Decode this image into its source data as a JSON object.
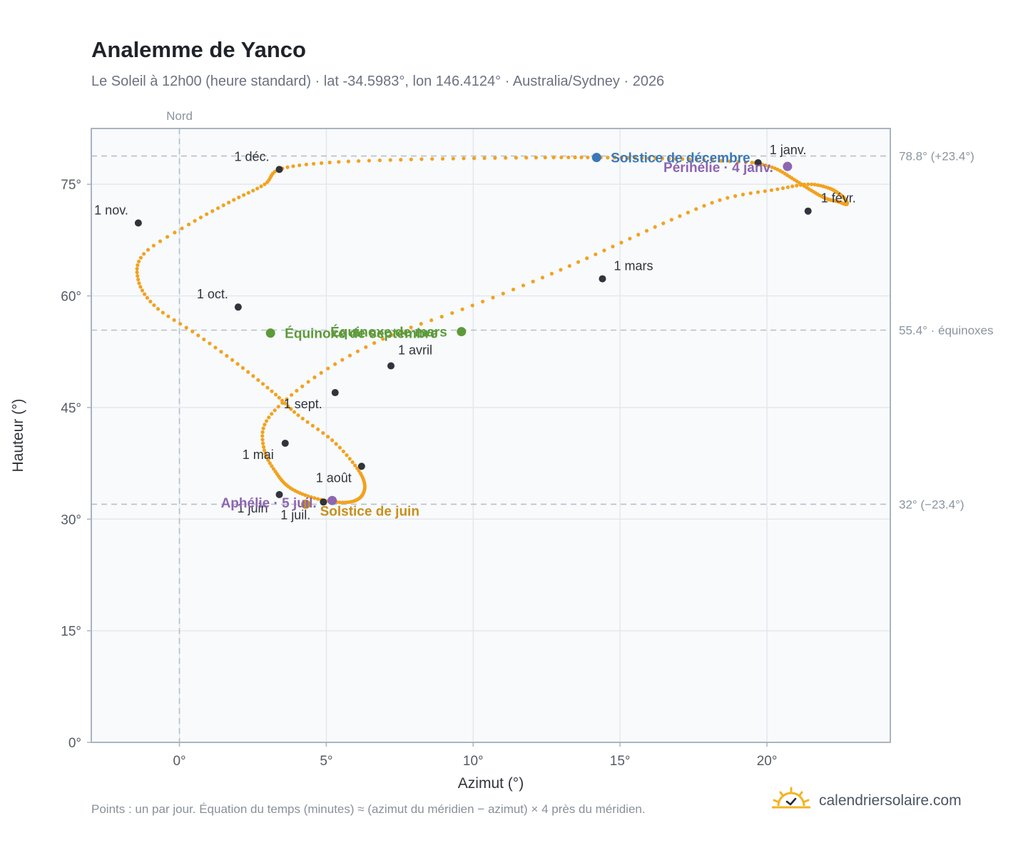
{
  "header": {
    "title": "Analemme de Yanco",
    "subtitle": "Le Soleil à 12h00 (heure standard) · lat -34.5983°, lon 146.4124° · Australia/Sydney · 2026"
  },
  "footer": {
    "note": "Points : un par jour. Équation du temps (minutes) ≈ (azimut du méridien − azimut) × 4 près du méridien.",
    "brand": "calendriersolaire.com",
    "brand_icon": "sun-check-icon"
  },
  "colors": {
    "curve": "#f2a21f",
    "month_marker": "#30343b",
    "december_solstice": "#3a78b8",
    "june_solstice": "#c8901c",
    "equinox": "#5d9a3a",
    "apsis": "#8d65b1",
    "reference_line": "#b5c0c9",
    "plot_background": "#f8fafc"
  },
  "chart_data": {
    "type": "scatter",
    "xlabel": "Azimut (°)",
    "ylabel": "Hauteur (°)",
    "xlim": [
      -3,
      24.2
    ],
    "ylim": [
      0,
      82.5
    ],
    "x_ticks": [
      0,
      5,
      10,
      15,
      20
    ],
    "x_tick_labels": [
      "0°",
      "5°",
      "10°",
      "15°",
      "20°"
    ],
    "y_ticks": [
      0,
      15,
      30,
      45,
      60,
      75
    ],
    "y_tick_labels": [
      "0°",
      "15°",
      "30°",
      "45°",
      "60°",
      "75°"
    ],
    "grid": true,
    "north_line": {
      "x": 0,
      "label": "Nord"
    },
    "reference_lines": [
      {
        "y": 78.8,
        "label": "78.8° (+23.4°)"
      },
      {
        "y": 55.4,
        "label": "55.4° · équinoxes"
      },
      {
        "y": 32.0,
        "label": "32° (−23.4°)"
      }
    ],
    "daily_points": {
      "description_per_day": "one point per day",
      "start": "2026-01-01",
      "azimuth": [
        19.6,
        20.3,
        20.9,
        21.5,
        22.0,
        22.4,
        22.7,
        22.7,
        22.5,
        22.1,
        21.4,
        20.3,
        18.5,
        16.5,
        14.4,
        12.2,
        9.7,
        7.2,
        5.2,
        3.7,
        2.9,
        2.9,
        3.3,
        3.7,
        4.3,
        5.1,
        5.8,
        6.2,
        6.3,
        6.0,
        5.2,
        4.0,
        3.2,
        2.0,
        0.6,
        -0.8,
        -1.4,
        -1.2,
        0.4,
        1.8,
        2.9,
        3.4,
        5.0,
        7.5,
        10.1,
        12.6,
        14.3,
        16.0,
        17.7,
        19.6
      ],
      "altitude": [
        77.9,
        77.1,
        75.7,
        74.2,
        73.1,
        72.7,
        72.3,
        72.8,
        73.6,
        74.5,
        75.0,
        74.3,
        73.0,
        69.8,
        66.0,
        62.2,
        58.3,
        54.7,
        50.6,
        46.3,
        42.7,
        39.1,
        36.2,
        34.4,
        33.2,
        32.4,
        32.3,
        33.1,
        34.8,
        37.1,
        40.6,
        44.1,
        47.0,
        50.8,
        54.8,
        58.5,
        62.1,
        65.7,
        69.8,
        72.8,
        75.0,
        77.0,
        77.9,
        78.3,
        78.5,
        78.6,
        78.6,
        78.5,
        78.3,
        77.9
      ]
    },
    "month_markers": [
      {
        "label": "1 janv.",
        "x": 19.7,
        "y": 77.9
      },
      {
        "label": "1 févr.",
        "x": 21.4,
        "y": 71.4
      },
      {
        "label": "1 mars",
        "x": 14.4,
        "y": 62.3
      },
      {
        "label": "1 avril",
        "x": 7.2,
        "y": 50.6
      },
      {
        "label": "1 mai",
        "x": 3.6,
        "y": 40.2
      },
      {
        "label": "1 juin",
        "x": 3.4,
        "y": 33.3
      },
      {
        "label": "1 juil.",
        "x": 4.9,
        "y": 32.3
      },
      {
        "label": "1 août",
        "x": 6.2,
        "y": 37.1
      },
      {
        "label": "1 sept.",
        "x": 5.3,
        "y": 47.0
      },
      {
        "label": "1 oct.",
        "x": 2.0,
        "y": 58.5
      },
      {
        "label": "1 nov.",
        "x": -1.4,
        "y": 69.8
      },
      {
        "label": "1 déc.",
        "x": 3.4,
        "y": 77.0
      }
    ],
    "events": [
      {
        "label": "Solstice de décembre",
        "x": 14.2,
        "y": 78.6,
        "color_key": "december_solstice"
      },
      {
        "label": "Périhélie · 4 janv.",
        "x": 20.7,
        "y": 77.4,
        "color_key": "apsis"
      },
      {
        "label": "Équinoxe de mars",
        "x": 9.6,
        "y": 55.2,
        "color_key": "equinox"
      },
      {
        "label": "Équinoxe de septembre",
        "x": 3.1,
        "y": 55.0,
        "color_key": "equinox"
      },
      {
        "label": "Solstice de juin",
        "x": 4.3,
        "y": 32.0,
        "color_key": "june_solstice"
      },
      {
        "label": "Aphélie · 5 juil.",
        "x": 5.2,
        "y": 32.5,
        "color_key": "apsis"
      }
    ]
  }
}
